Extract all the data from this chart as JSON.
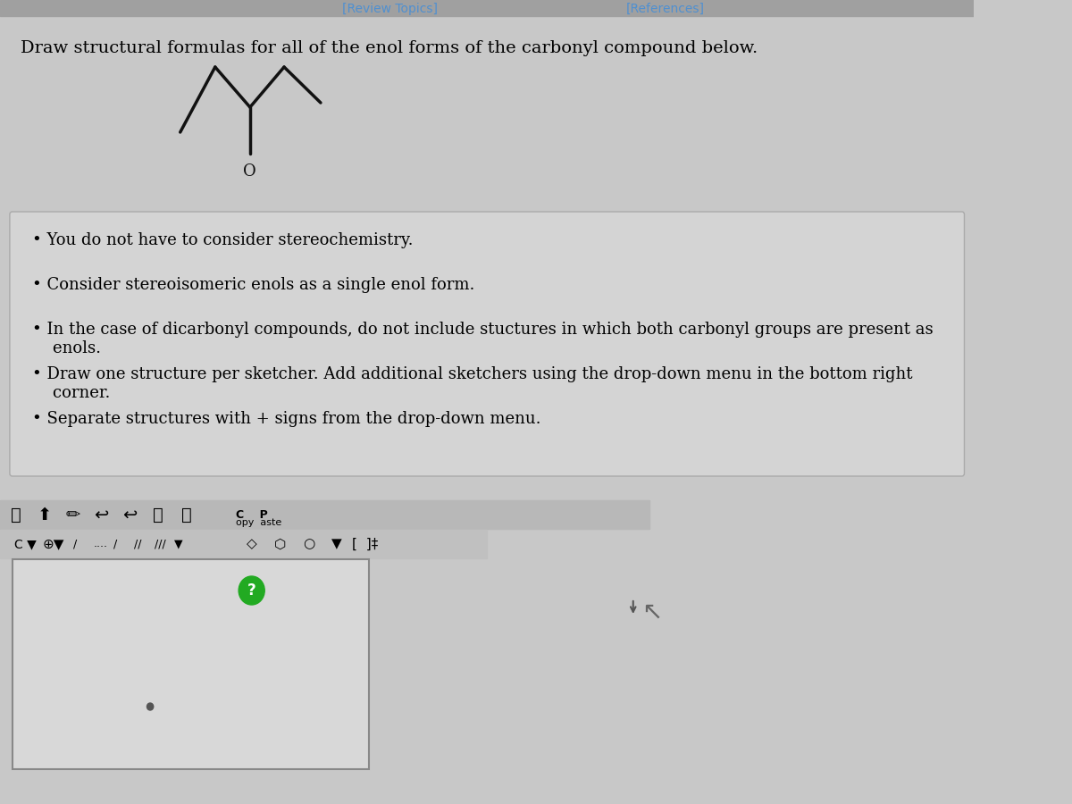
{
  "bg_color": "#c8c8c8",
  "top_bar_color": "#a0a0a0",
  "title_text": "Draw structural formulas for all of the enol forms of the carbonyl compound below.",
  "title_fontsize": 14,
  "title_color": "#000000",
  "bullet_points": [
    "You do not have to consider stereochemistry.",
    "Consider stereoisomeric enols as a single enol form.",
    "In the case of dicarbonyl compounds, do not include stuctures in which both carbonyl groups are present as\n    enols.",
    "Draw one structure per sketcher. Add additional sketchers using the drop-down menu in the bottom right\n    corner.",
    "Separate structures with + signs from the drop-down menu."
  ],
  "bullet_fontsize": 13,
  "bullet_color": "#000000",
  "bullet_box_color": "#d8d8d8",
  "toolbar_color": "#c0c0c0",
  "sketcher_bg": "#d8d8d8",
  "sketcher_border": "#888888",
  "top_nav_color": "#5090d0",
  "top_nav_items": [
    "[Review Topics]",
    "[References]"
  ]
}
